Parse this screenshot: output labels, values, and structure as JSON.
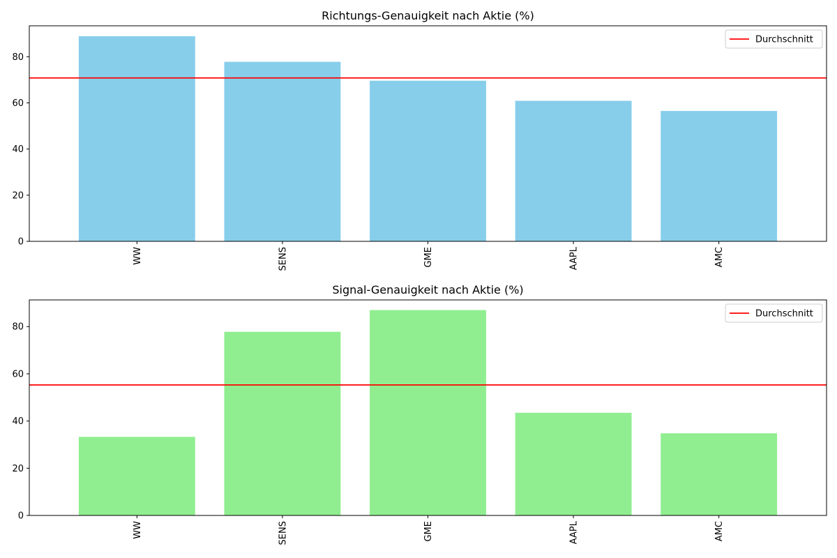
{
  "chart_data": [
    {
      "type": "bar",
      "title": "Richtungs-Genauigkeit nach Aktie (%)",
      "xlabel": "",
      "ylabel": "",
      "categories": [
        "WW",
        "SENS",
        "GME",
        "AAPL",
        "AMC"
      ],
      "values": [
        88.9,
        77.8,
        69.6,
        60.9,
        56.5
      ],
      "average": 70.8,
      "legend": [
        "Durchschnitt"
      ],
      "legend_position": "top-right",
      "ylim": [
        0,
        93.4
      ],
      "yticks": [
        0,
        20,
        40,
        60,
        80
      ],
      "grid": false,
      "colors": {
        "bar": "#87CEEB",
        "average_line": "#FF0000"
      }
    },
    {
      "type": "bar",
      "title": "Signal-Genauigkeit nach Aktie (%)",
      "xlabel": "",
      "ylabel": "",
      "categories": [
        "WW",
        "SENS",
        "GME",
        "AAPL",
        "AMC"
      ],
      "values": [
        33.3,
        77.8,
        87.0,
        43.5,
        34.8
      ],
      "average": 55.3,
      "legend": [
        "Durchschnitt"
      ],
      "legend_position": "top-right",
      "ylim": [
        0,
        91.3
      ],
      "yticks": [
        0,
        20,
        40,
        60,
        80
      ],
      "grid": false,
      "colors": {
        "bar": "#90EE90",
        "average_line": "#FF0000"
      }
    }
  ]
}
